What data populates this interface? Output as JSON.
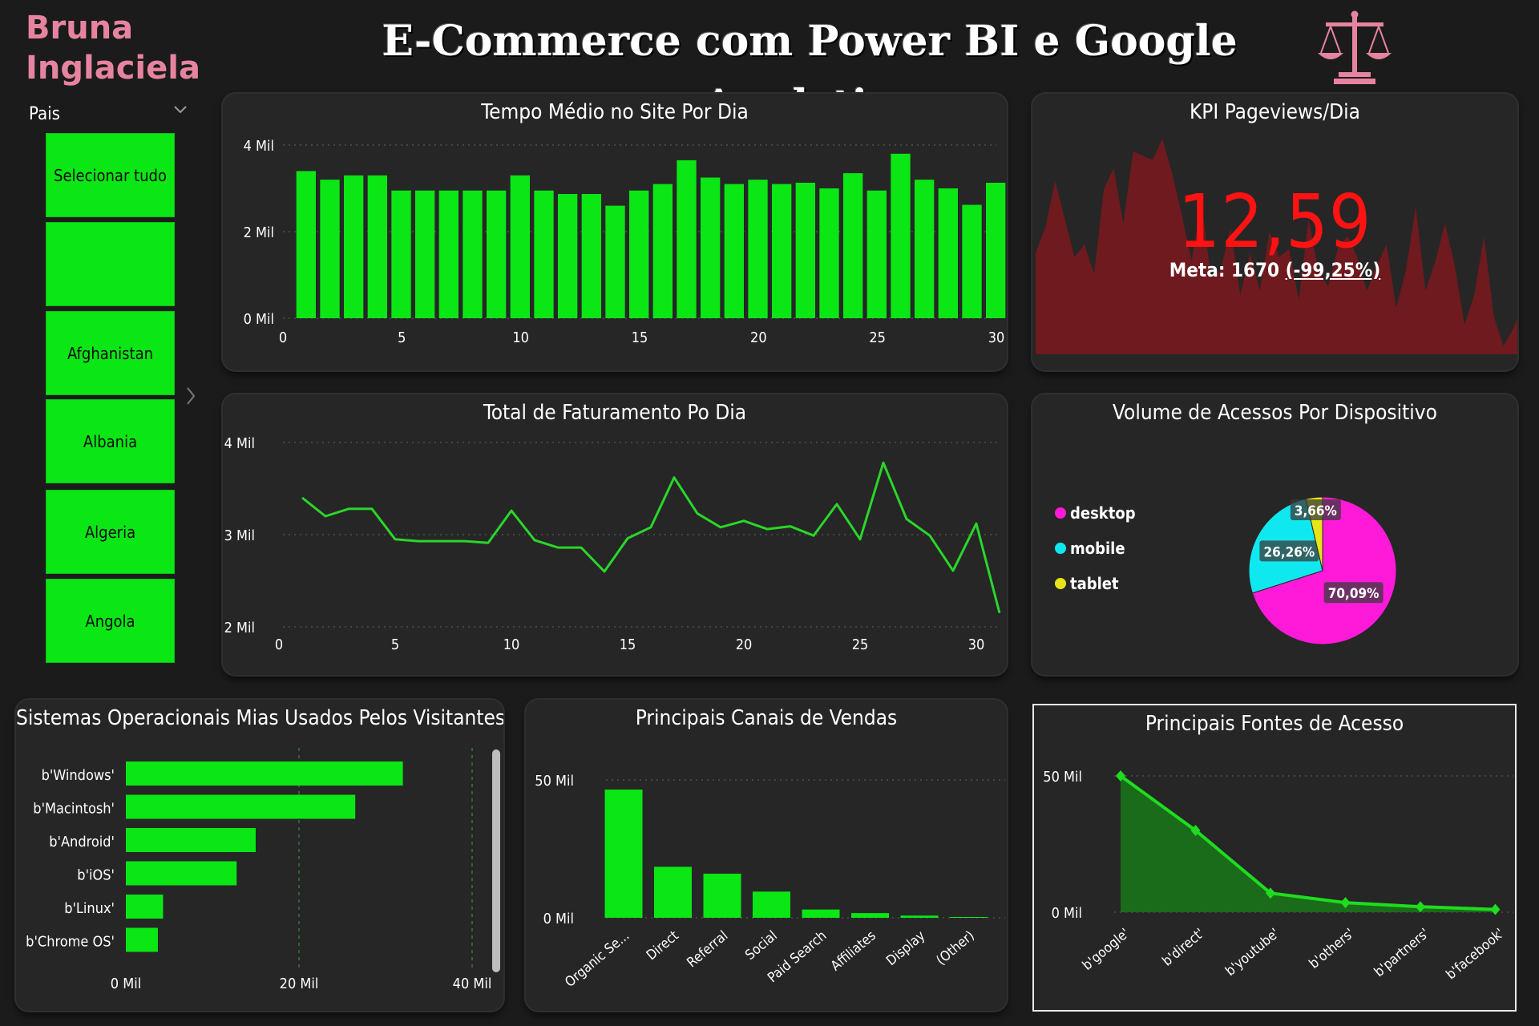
{
  "brand": {
    "line1": "Bruna",
    "line2": "Inglaciela"
  },
  "header": {
    "title": "E-Commerce com Power BI e Google Analytics",
    "logo_icon": "balance-scale-icon",
    "logo_color": "#e6849f"
  },
  "slicer": {
    "title": "Pais",
    "items": [
      {
        "label": "Selecionar tudo"
      },
      {
        "label": ""
      },
      {
        "label": "Afghanistan"
      },
      {
        "label": "Albania"
      },
      {
        "label": "Algeria"
      },
      {
        "label": "Angola"
      }
    ],
    "color": "#0be615"
  },
  "panels": {
    "tempo": {
      "title": "Tempo Médio no Site Por Dia"
    },
    "kpi": {
      "title": "KPI Pageviews/Dia",
      "value": "12,59",
      "goal_text": "Meta: 1670",
      "goal_delta": "(-99,25%)"
    },
    "faturamento": {
      "title": "Total de Faturamento Po Dia"
    },
    "dispositivo": {
      "title": "Volume de Acessos Por Dispositivo"
    },
    "sistemas": {
      "title": "Sistemas Operacionais Mias Usados Pelos Visitantes"
    },
    "canais": {
      "title": "Principais Canais de Vendas"
    },
    "fontes": {
      "title": "Principais Fontes de Acesso"
    }
  },
  "chart_data": [
    {
      "id": "tempo",
      "type": "bar",
      "x": [
        1,
        2,
        3,
        4,
        5,
        6,
        7,
        8,
        9,
        10,
        11,
        12,
        13,
        14,
        15,
        16,
        17,
        18,
        19,
        20,
        21,
        22,
        23,
        24,
        25,
        26,
        27,
        28,
        29,
        30
      ],
      "values": [
        3400,
        3200,
        3300,
        3300,
        2950,
        2950,
        2950,
        2950,
        2950,
        3300,
        2950,
        2870,
        2870,
        2600,
        2950,
        3100,
        3650,
        3250,
        3100,
        3200,
        3100,
        3130,
        3000,
        3350,
        2950,
        3800,
        3200,
        3000,
        2620,
        3130
      ],
      "ylim": [
        0,
        4000
      ],
      "yticks": [
        "0 Mil",
        "2 Mil",
        "4 Mil"
      ],
      "xticks": [
        "0",
        "5",
        "10",
        "15",
        "20",
        "25",
        "30"
      ],
      "color": "#0be615",
      "grid": true
    },
    {
      "id": "kpi",
      "type": "area",
      "values": [
        480,
        600,
        820,
        640,
        460,
        520,
        380,
        780,
        880,
        620,
        960,
        940,
        920,
        1020,
        860,
        660,
        440,
        720,
        360,
        400,
        600,
        280,
        480,
        300,
        580,
        460,
        500,
        260,
        640,
        400,
        320,
        500,
        560,
        460,
        300,
        420,
        520,
        220,
        400,
        700,
        300,
        440,
        620,
        420,
        140,
        280,
        560,
        180,
        40,
        120,
        240
      ],
      "ylim": [
        0,
        1100
      ],
      "color": "#6e1a1e"
    },
    {
      "id": "faturamento",
      "type": "line",
      "x": [
        1,
        2,
        3,
        4,
        5,
        6,
        7,
        8,
        9,
        10,
        11,
        12,
        13,
        14,
        15,
        16,
        17,
        18,
        19,
        20,
        21,
        22,
        23,
        24,
        25,
        26,
        27,
        28,
        29,
        30,
        31
      ],
      "values": [
        3400,
        3200,
        3280,
        3280,
        2950,
        2930,
        2930,
        2930,
        2910,
        3260,
        2940,
        2860,
        2860,
        2600,
        2960,
        3080,
        3620,
        3230,
        3080,
        3150,
        3060,
        3090,
        2990,
        3330,
        2950,
        3780,
        3170,
        2990,
        2610,
        3120,
        2150
      ],
      "ylim": [
        2000,
        4000
      ],
      "yticks": [
        "2 Mil",
        "3 Mil",
        "4 Mil"
      ],
      "xticks": [
        "0",
        "5",
        "10",
        "15",
        "20",
        "25",
        "30"
      ],
      "color": "#2ad62a",
      "grid": true
    },
    {
      "id": "dispositivo",
      "type": "pie",
      "labels": [
        "desktop",
        "mobile",
        "tablet"
      ],
      "values": [
        70.09,
        26.26,
        3.66
      ],
      "value_labels": [
        "70,09%",
        "26,26%",
        "3,66%"
      ],
      "colors": [
        "#ff1ad9",
        "#10e8f0",
        "#e5e51a"
      ],
      "legend": "left"
    },
    {
      "id": "sistemas",
      "type": "bar",
      "orientation": "horizontal",
      "categories": [
        "b'Windows'",
        "b'Macintosh'",
        "b'Android'",
        "b'iOS'",
        "b'Linux'",
        "b'Chrome OS'"
      ],
      "values": [
        32000,
        26500,
        15000,
        12800,
        4300,
        3700
      ],
      "xlim": [
        0,
        40000
      ],
      "xticks": [
        "0 Mil",
        "20 Mil",
        "40 Mil"
      ],
      "color": "#0be615",
      "grid": true
    },
    {
      "id": "canais",
      "type": "bar",
      "categories": [
        "Organic Se...",
        "Direct",
        "Referral",
        "Social",
        "Paid Search",
        "Affiliates",
        "Display",
        "(Other)"
      ],
      "values": [
        46500,
        18500,
        16000,
        9500,
        3000,
        1700,
        800,
        300
      ],
      "ylim": [
        0,
        50000
      ],
      "yticks": [
        "0 Mil",
        "50 Mil"
      ],
      "color": "#0be615",
      "grid": true
    },
    {
      "id": "fontes",
      "type": "area",
      "categories": [
        "b'google'",
        "b'direct'",
        "b'youtube'",
        "b'others'",
        "b'partners'",
        "b'facebook'"
      ],
      "values": [
        50000,
        30000,
        7000,
        3500,
        2000,
        1000
      ],
      "ylim": [
        0,
        50000
      ],
      "yticks": [
        "0 Mil",
        "50 Mil"
      ],
      "color": "#1fdc1f",
      "fill": "#1a6b1a",
      "grid": true
    }
  ]
}
